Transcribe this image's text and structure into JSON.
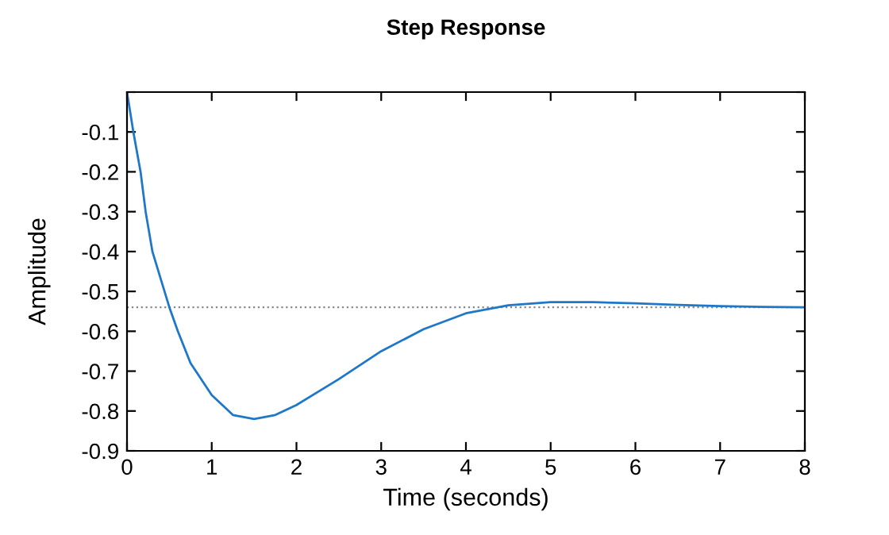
{
  "chart_data": {
    "type": "line",
    "title": "Step Response",
    "xlabel": "Time (seconds)",
    "ylabel": "Amplitude",
    "x": [
      0,
      0.075,
      0.16,
      0.22,
      0.3,
      0.4,
      0.5,
      0.6,
      0.75,
      1,
      1.25,
      1.5,
      1.75,
      2,
      2.5,
      3,
      3.5,
      4,
      4.5,
      5,
      5.5,
      6,
      6.5,
      7,
      7.5,
      8
    ],
    "series": [
      {
        "color": "#1f77c8",
        "values": [
          0,
          -0.1,
          -0.2,
          -0.3,
          -0.4,
          -0.47,
          -0.54,
          -0.6,
          -0.68,
          -0.76,
          -0.81,
          -0.82,
          -0.81,
          -0.785,
          -0.72,
          -0.65,
          -0.595,
          -0.555,
          -0.535,
          -0.527,
          -0.527,
          -0.53,
          -0.534,
          -0.537,
          -0.539,
          -0.54
        ]
      }
    ],
    "xlim": [
      0,
      8
    ],
    "xticks": [
      0,
      1,
      2,
      3,
      4,
      5,
      6,
      7,
      8
    ],
    "ylim": [
      -0.9,
      0
    ],
    "yticks": [
      -0.9,
      -0.8,
      -0.7,
      -0.6,
      -0.5,
      -0.4,
      -0.3,
      -0.2,
      -0.1,
      {
        "value": 0,
        "label": null
      }
    ],
    "ref_lines": [
      {
        "axis": "y",
        "value": -0.54,
        "color": "#888888",
        "line_style": "dotted"
      }
    ],
    "grid": false,
    "legend": false
  }
}
